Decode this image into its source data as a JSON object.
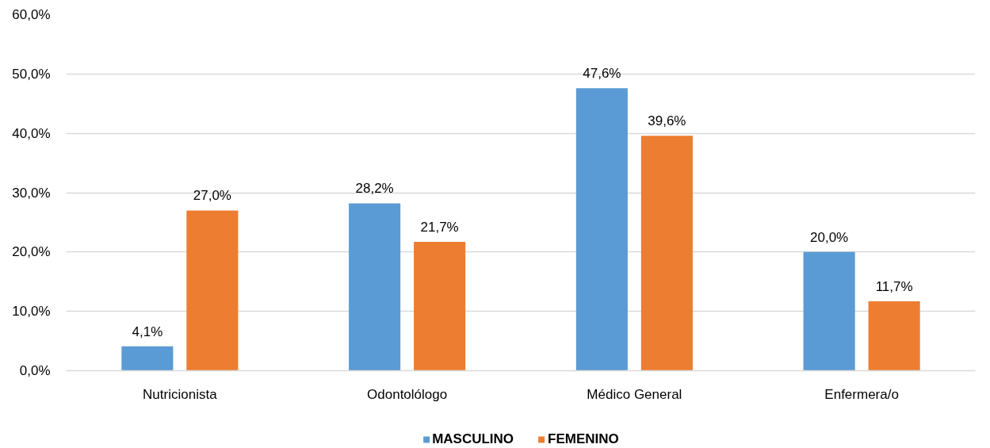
{
  "chart_data": {
    "type": "bar",
    "categories": [
      "Nutricionista",
      "Odontolólogo",
      "Médico General",
      "Enfermera/o"
    ],
    "series": [
      {
        "name": "MASCULINO",
        "color": "#5b9bd5",
        "values": [
          4.1,
          28.2,
          47.6,
          20.0
        ],
        "value_labels": [
          "4,1%",
          "28,2%",
          "47,6%",
          "20,0%"
        ]
      },
      {
        "name": "FEMENINO",
        "color": "#ed7d31",
        "values": [
          27.0,
          21.7,
          39.6,
          11.7
        ],
        "value_labels": [
          "27,0%",
          "21,7%",
          "39,6%",
          "11,7%"
        ]
      }
    ],
    "ylim": [
      0,
      60
    ],
    "yticks": [
      {
        "value": 0,
        "label": "0,0%"
      },
      {
        "value": 10,
        "label": "10,0%"
      },
      {
        "value": 20,
        "label": "20,0%"
      },
      {
        "value": 30,
        "label": "30,0%"
      },
      {
        "value": 40,
        "label": "40,0%"
      },
      {
        "value": 50,
        "label": "50,0%"
      },
      {
        "value": 60,
        "label": "60,0%"
      }
    ],
    "grid": "y",
    "legend": "bottom"
  }
}
